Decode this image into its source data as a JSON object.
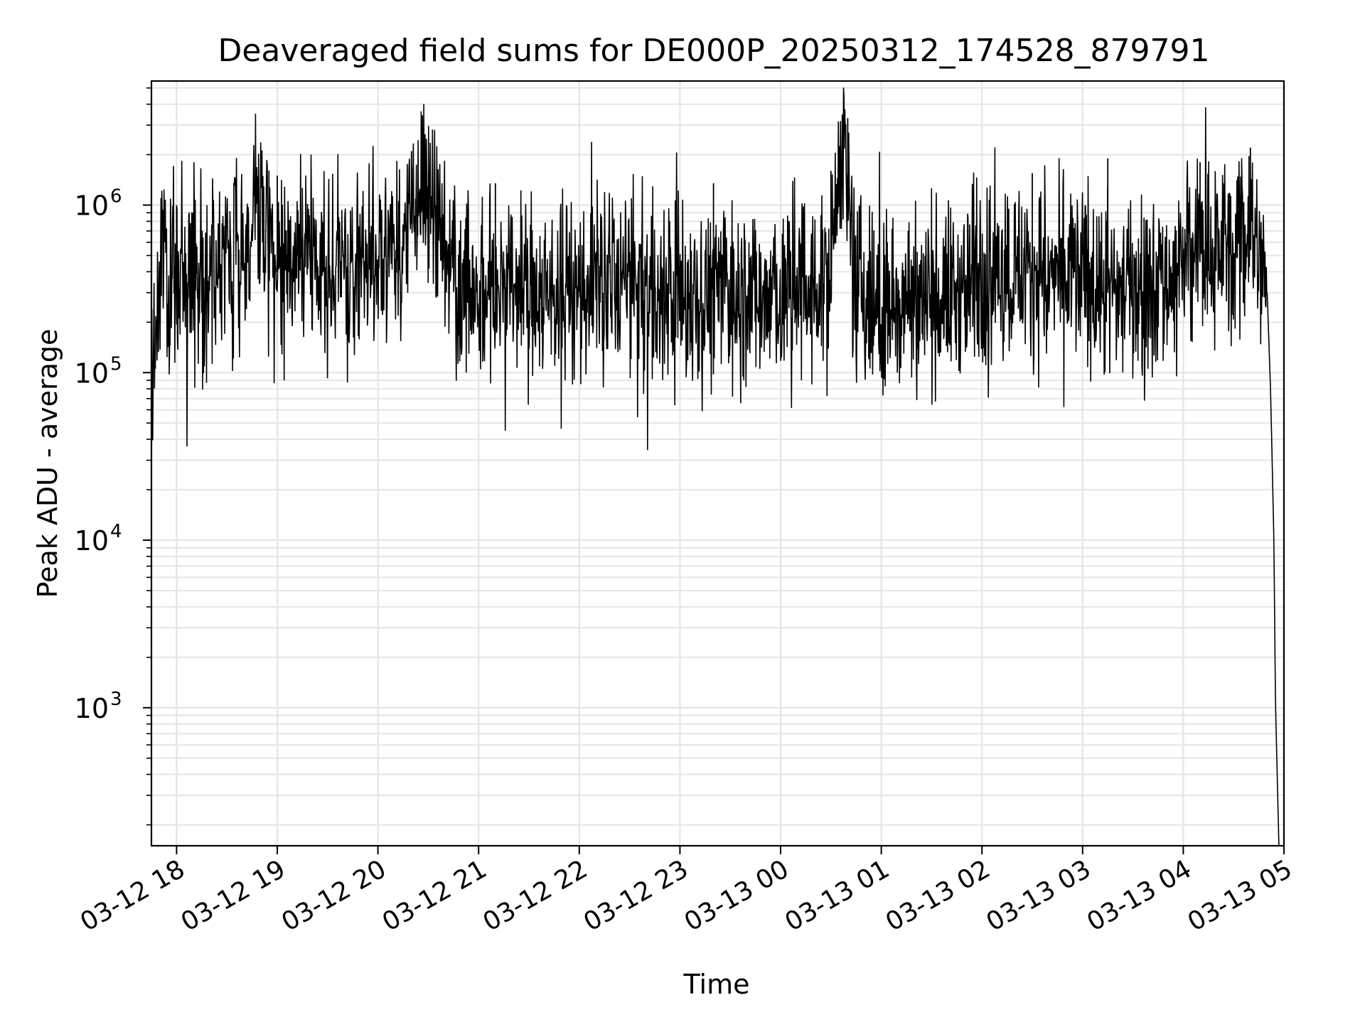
{
  "chart_data": {
    "type": "line",
    "title": "Deaveraged field sums for DE000P_20250312_174528_879791",
    "xlabel": "Time",
    "ylabel": "Peak ADU - average",
    "yscale": "log",
    "ylim": [
      150,
      5500000
    ],
    "xlim": [
      "2025-03-12 17:45",
      "2025-03-13 05:00"
    ],
    "grid": "on (major and minor)",
    "line_color": "#000000",
    "grid_color": "#e5e5e5",
    "x_ticks": [
      {
        "time": "2025-03-12 18:00",
        "label": "03-12 18"
      },
      {
        "time": "2025-03-12 19:00",
        "label": "03-12 19"
      },
      {
        "time": "2025-03-12 20:00",
        "label": "03-12 20"
      },
      {
        "time": "2025-03-12 21:00",
        "label": "03-12 21"
      },
      {
        "time": "2025-03-12 22:00",
        "label": "03-12 22"
      },
      {
        "time": "2025-03-12 23:00",
        "label": "03-12 23"
      },
      {
        "time": "2025-03-13 00:00",
        "label": "03-13 00"
      },
      {
        "time": "2025-03-13 01:00",
        "label": "03-13 01"
      },
      {
        "time": "2025-03-13 02:00",
        "label": "03-13 02"
      },
      {
        "time": "2025-03-13 03:00",
        "label": "03-13 03"
      },
      {
        "time": "2025-03-13 04:00",
        "label": "03-13 04"
      },
      {
        "time": "2025-03-13 05:00",
        "label": "03-13 05"
      }
    ],
    "y_ticks": [
      {
        "value": 1000,
        "base": "10",
        "exp": "3"
      },
      {
        "value": 10000,
        "base": "10",
        "exp": "4"
      },
      {
        "value": 100000,
        "base": "10",
        "exp": "5"
      },
      {
        "value": 1000000,
        "base": "10",
        "exp": "6"
      }
    ],
    "series": [
      {
        "x": [
          "2025-03-12 17:45",
          "2025-03-12 17:48",
          "2025-03-12 17:50",
          "2025-03-12 17:53",
          "2025-03-12 17:55",
          "2025-03-12 18:00",
          "2025-03-12 18:05",
          "2025-03-12 18:10",
          "2025-03-12 18:15",
          "2025-03-12 18:20",
          "2025-03-12 18:30",
          "2025-03-12 18:40",
          "2025-03-12 18:45",
          "2025-03-12 18:50",
          "2025-03-12 19:00",
          "2025-03-12 19:05",
          "2025-03-12 19:15",
          "2025-03-12 19:30",
          "2025-03-12 19:45",
          "2025-03-12 20:00",
          "2025-03-12 20:15",
          "2025-03-12 20:25",
          "2025-03-12 20:30",
          "2025-03-12 20:35",
          "2025-03-12 20:45",
          "2025-03-12 21:00",
          "2025-03-12 21:15",
          "2025-03-12 21:30",
          "2025-03-12 21:45",
          "2025-03-12 22:00",
          "2025-03-12 22:15",
          "2025-03-12 22:30",
          "2025-03-12 22:45",
          "2025-03-12 23:00",
          "2025-03-12 23:15",
          "2025-03-12 23:30",
          "2025-03-12 23:45",
          "2025-03-13 00:00",
          "2025-03-13 00:15",
          "2025-03-13 00:30",
          "2025-03-13 00:35",
          "2025-03-13 00:45",
          "2025-03-13 01:00",
          "2025-03-13 01:15",
          "2025-03-13 01:30",
          "2025-03-13 01:45",
          "2025-03-13 02:00",
          "2025-03-13 02:15",
          "2025-03-13 02:30",
          "2025-03-13 02:45",
          "2025-03-13 03:00",
          "2025-03-13 03:15",
          "2025-03-13 03:30",
          "2025-03-13 03:45",
          "2025-03-13 04:00",
          "2025-03-13 04:05",
          "2025-03-13 04:15",
          "2025-03-13 04:25",
          "2025-03-13 04:30",
          "2025-03-13 04:40",
          "2025-03-13 04:45",
          "2025-03-13 04:50",
          "2025-03-13 04:52",
          "2025-03-13 04:54",
          "2025-03-13 04:55",
          "2025-03-13 04:57"
        ],
        "y": [
          80000,
          180000,
          400000,
          650000,
          450000,
          300000,
          350000,
          500000,
          380000,
          420000,
          450000,
          550000,
          600000,
          800000,
          400000,
          450000,
          500000,
          420000,
          450000,
          500000,
          600000,
          1000000,
          1500000,
          700000,
          400000,
          300000,
          350000,
          320000,
          300000,
          310000,
          350000,
          320000,
          300000,
          280000,
          300000,
          320000,
          290000,
          280000,
          300000,
          350000,
          2500000,
          320000,
          200000,
          300000,
          280000,
          300000,
          380000,
          420000,
          400000,
          350000,
          380000,
          300000,
          320000,
          340000,
          420000,
          500000,
          550000,
          600000,
          500000,
          700000,
          500000,
          300000,
          80000,
          10000,
          1000,
          150
        ]
      }
    ]
  }
}
